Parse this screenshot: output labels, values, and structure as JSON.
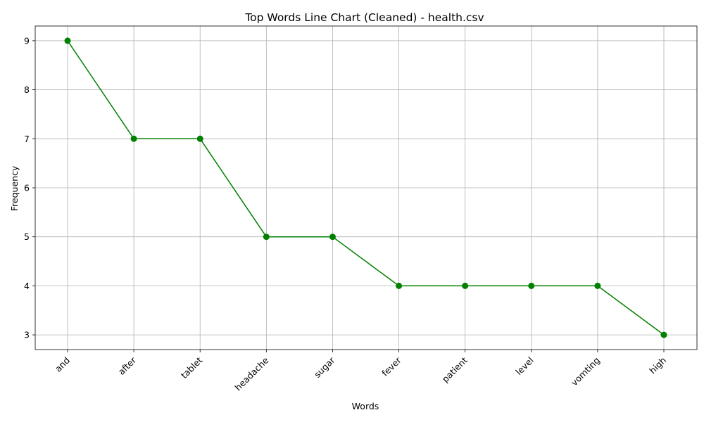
{
  "chart_data": {
    "type": "line",
    "title": "Top Words Line Chart (Cleaned) - health.csv",
    "xlabel": "Words",
    "ylabel": "Frequency",
    "categories": [
      "and",
      "after",
      "tablet",
      "headache",
      "sugar",
      "fever",
      "patient",
      "level",
      "vomting",
      "high"
    ],
    "series": [
      {
        "values": [
          9,
          7,
          7,
          5,
          5,
          4,
          4,
          4,
          4,
          3
        ],
        "color": "#008000",
        "marker": "circle"
      }
    ],
    "ylim": [
      2.7,
      9.3
    ],
    "yticks": [
      3,
      4,
      5,
      6,
      7,
      8,
      9
    ],
    "grid": true,
    "x_tick_rotation": 45
  }
}
